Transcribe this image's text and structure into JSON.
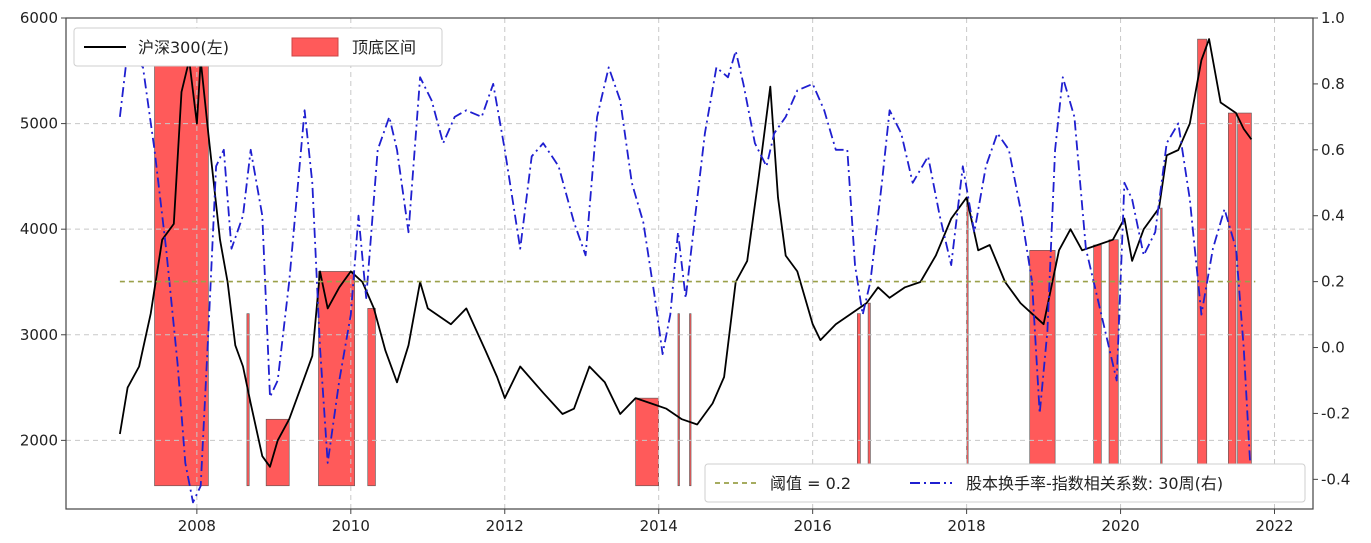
{
  "chart_data": {
    "type": "line",
    "x_range": [
      2006.3,
      2022.5
    ],
    "x_ticks": [
      "2008",
      "2010",
      "2012",
      "2014",
      "2016",
      "2018",
      "2020",
      "2022"
    ],
    "y_left": {
      "range": [
        1350,
        6000
      ],
      "ticks": [
        "2000",
        "3000",
        "4000",
        "5000",
        "6000"
      ]
    },
    "y_right": {
      "range": [
        -0.49,
        1.0
      ],
      "ticks": [
        "-0.4",
        "-0.2",
        "0.0",
        "0.2",
        "0.4",
        "0.6",
        "0.8",
        "1.0"
      ]
    },
    "grid": true,
    "legends": {
      "top_left": [
        "沪深300(左)",
        "顶底区间"
      ],
      "bottom_right": [
        "阈值 = 0.2",
        "股本换手率-指数相关系数: 30周(右)"
      ]
    },
    "series": [
      {
        "name": "沪深300(左)",
        "axis": "left",
        "color": "#000000",
        "style": "solid",
        "points": [
          [
            2007.0,
            2060
          ],
          [
            2007.1,
            2500
          ],
          [
            2007.25,
            2700
          ],
          [
            2007.4,
            3200
          ],
          [
            2007.55,
            3900
          ],
          [
            2007.7,
            4050
          ],
          [
            2007.8,
            5300
          ],
          [
            2007.9,
            5600
          ],
          [
            2008.0,
            5000
          ],
          [
            2008.05,
            5600
          ],
          [
            2008.15,
            4900
          ],
          [
            2008.3,
            3900
          ],
          [
            2008.4,
            3500
          ],
          [
            2008.5,
            2900
          ],
          [
            2008.6,
            2700
          ],
          [
            2008.7,
            2350
          ],
          [
            2008.85,
            1850
          ],
          [
            2008.95,
            1750
          ],
          [
            2009.05,
            2000
          ],
          [
            2009.2,
            2200
          ],
          [
            2009.35,
            2500
          ],
          [
            2009.5,
            2800
          ],
          [
            2009.6,
            3600
          ],
          [
            2009.7,
            3250
          ],
          [
            2009.85,
            3450
          ],
          [
            2010.0,
            3600
          ],
          [
            2010.15,
            3500
          ],
          [
            2010.3,
            3250
          ],
          [
            2010.45,
            2850
          ],
          [
            2010.6,
            2550
          ],
          [
            2010.75,
            2900
          ],
          [
            2010.9,
            3500
          ],
          [
            2011.0,
            3250
          ],
          [
            2011.3,
            3100
          ],
          [
            2011.5,
            3250
          ],
          [
            2011.75,
            2850
          ],
          [
            2011.9,
            2600
          ],
          [
            2012.0,
            2400
          ],
          [
            2012.2,
            2700
          ],
          [
            2012.5,
            2450
          ],
          [
            2012.75,
            2250
          ],
          [
            2012.9,
            2300
          ],
          [
            2013.1,
            2700
          ],
          [
            2013.3,
            2550
          ],
          [
            2013.5,
            2250
          ],
          [
            2013.7,
            2400
          ],
          [
            2013.9,
            2350
          ],
          [
            2014.1,
            2300
          ],
          [
            2014.3,
            2200
          ],
          [
            2014.5,
            2150
          ],
          [
            2014.7,
            2350
          ],
          [
            2014.85,
            2600
          ],
          [
            2015.0,
            3500
          ],
          [
            2015.15,
            3700
          ],
          [
            2015.3,
            4500
          ],
          [
            2015.45,
            5350
          ],
          [
            2015.55,
            4300
          ],
          [
            2015.65,
            3750
          ],
          [
            2015.8,
            3600
          ],
          [
            2016.0,
            3100
          ],
          [
            2016.1,
            2950
          ],
          [
            2016.3,
            3100
          ],
          [
            2016.5,
            3200
          ],
          [
            2016.7,
            3300
          ],
          [
            2016.85,
            3450
          ],
          [
            2017.0,
            3350
          ],
          [
            2017.2,
            3450
          ],
          [
            2017.4,
            3500
          ],
          [
            2017.6,
            3750
          ],
          [
            2017.8,
            4100
          ],
          [
            2018.0,
            4300
          ],
          [
            2018.15,
            3800
          ],
          [
            2018.3,
            3850
          ],
          [
            2018.5,
            3500
          ],
          [
            2018.7,
            3300
          ],
          [
            2018.85,
            3200
          ],
          [
            2019.0,
            3100
          ],
          [
            2019.2,
            3800
          ],
          [
            2019.35,
            4000
          ],
          [
            2019.5,
            3800
          ],
          [
            2019.7,
            3850
          ],
          [
            2019.9,
            3900
          ],
          [
            2020.05,
            4100
          ],
          [
            2020.15,
            3700
          ],
          [
            2020.3,
            4000
          ],
          [
            2020.5,
            4200
          ],
          [
            2020.6,
            4700
          ],
          [
            2020.75,
            4750
          ],
          [
            2020.9,
            5000
          ],
          [
            2021.05,
            5600
          ],
          [
            2021.15,
            5800
          ],
          [
            2021.3,
            5200
          ],
          [
            2021.5,
            5100
          ],
          [
            2021.6,
            4950
          ],
          [
            2021.7,
            4850
          ]
        ]
      },
      {
        "name": "股本换手率-指数相关系数: 30周(右)",
        "axis": "right",
        "color": "#1f1fd0",
        "style": "dashdot",
        "points": [
          [
            2007.0,
            0.7
          ],
          [
            2007.1,
            0.9
          ],
          [
            2007.3,
            0.85
          ],
          [
            2007.45,
            0.6
          ],
          [
            2007.6,
            0.3
          ],
          [
            2007.75,
            -0.05
          ],
          [
            2007.85,
            -0.35
          ],
          [
            2007.95,
            -0.47
          ],
          [
            2008.05,
            -0.42
          ],
          [
            2008.15,
            0.05
          ],
          [
            2008.25,
            0.55
          ],
          [
            2008.35,
            0.6
          ],
          [
            2008.45,
            0.3
          ],
          [
            2008.6,
            0.4
          ],
          [
            2008.7,
            0.6
          ],
          [
            2008.85,
            0.4
          ],
          [
            2008.95,
            -0.15
          ],
          [
            2009.05,
            -0.1
          ],
          [
            2009.2,
            0.2
          ],
          [
            2009.4,
            0.72
          ],
          [
            2009.5,
            0.5
          ],
          [
            2009.6,
            0.0
          ],
          [
            2009.7,
            -0.35
          ],
          [
            2009.85,
            -0.1
          ],
          [
            2010.0,
            0.1
          ],
          [
            2010.1,
            0.4
          ],
          [
            2010.2,
            0.15
          ],
          [
            2010.35,
            0.6
          ],
          [
            2010.5,
            0.7
          ],
          [
            2010.6,
            0.6
          ],
          [
            2010.75,
            0.35
          ],
          [
            2010.9,
            0.82
          ],
          [
            2011.05,
            0.75
          ],
          [
            2011.2,
            0.62
          ],
          [
            2011.35,
            0.7
          ],
          [
            2011.5,
            0.72
          ],
          [
            2011.7,
            0.7
          ],
          [
            2011.85,
            0.8
          ],
          [
            2012.0,
            0.6
          ],
          [
            2012.2,
            0.3
          ],
          [
            2012.35,
            0.58
          ],
          [
            2012.5,
            0.62
          ],
          [
            2012.7,
            0.55
          ],
          [
            2012.9,
            0.38
          ],
          [
            2013.05,
            0.28
          ],
          [
            2013.2,
            0.7
          ],
          [
            2013.35,
            0.85
          ],
          [
            2013.5,
            0.75
          ],
          [
            2013.65,
            0.5
          ],
          [
            2013.8,
            0.38
          ],
          [
            2013.95,
            0.15
          ],
          [
            2014.05,
            -0.02
          ],
          [
            2014.15,
            0.1
          ],
          [
            2014.25,
            0.35
          ],
          [
            2014.35,
            0.15
          ],
          [
            2014.45,
            0.35
          ],
          [
            2014.6,
            0.65
          ],
          [
            2014.75,
            0.85
          ],
          [
            2014.9,
            0.82
          ],
          [
            2015.0,
            0.9
          ],
          [
            2015.1,
            0.8
          ],
          [
            2015.25,
            0.62
          ],
          [
            2015.4,
            0.55
          ],
          [
            2015.5,
            0.65
          ],
          [
            2015.65,
            0.7
          ],
          [
            2015.8,
            0.78
          ],
          [
            2016.0,
            0.8
          ],
          [
            2016.15,
            0.72
          ],
          [
            2016.3,
            0.6
          ],
          [
            2016.45,
            0.6
          ],
          [
            2016.55,
            0.25
          ],
          [
            2016.65,
            0.1
          ],
          [
            2016.75,
            0.2
          ],
          [
            2016.9,
            0.5
          ],
          [
            2017.0,
            0.72
          ],
          [
            2017.15,
            0.65
          ],
          [
            2017.3,
            0.5
          ],
          [
            2017.5,
            0.58
          ],
          [
            2017.65,
            0.4
          ],
          [
            2017.8,
            0.25
          ],
          [
            2017.95,
            0.55
          ],
          [
            2018.1,
            0.35
          ],
          [
            2018.25,
            0.55
          ],
          [
            2018.4,
            0.65
          ],
          [
            2018.55,
            0.6
          ],
          [
            2018.7,
            0.42
          ],
          [
            2018.85,
            0.2
          ],
          [
            2018.95,
            -0.2
          ],
          [
            2019.05,
            0.05
          ],
          [
            2019.15,
            0.6
          ],
          [
            2019.25,
            0.82
          ],
          [
            2019.4,
            0.7
          ],
          [
            2019.55,
            0.3
          ],
          [
            2019.7,
            0.15
          ],
          [
            2019.85,
            0.0
          ],
          [
            2019.95,
            -0.1
          ],
          [
            2020.05,
            0.5
          ],
          [
            2020.15,
            0.45
          ],
          [
            2020.3,
            0.28
          ],
          [
            2020.45,
            0.35
          ],
          [
            2020.6,
            0.62
          ],
          [
            2020.75,
            0.68
          ],
          [
            2020.9,
            0.45
          ],
          [
            2021.05,
            0.1
          ],
          [
            2021.2,
            0.3
          ],
          [
            2021.35,
            0.42
          ],
          [
            2021.5,
            0.3
          ],
          [
            2021.6,
            0.0
          ],
          [
            2021.7,
            -0.42
          ]
        ]
      },
      {
        "name": "阈值 = 0.2",
        "axis": "right",
        "color": "#9aa04a",
        "style": "dashed",
        "points": [
          [
            2007.0,
            0.2
          ],
          [
            2021.75,
            0.2
          ]
        ]
      }
    ],
    "bands": {
      "name": "顶底区间",
      "color": "#ff5a5a",
      "intervals": [
        [
          2007.45,
          2008.15
        ],
        [
          2008.65,
          2008.68
        ],
        [
          2008.9,
          2009.2
        ],
        [
          2009.58,
          2010.05
        ],
        [
          2010.22,
          2010.32
        ],
        [
          2013.7,
          2014.0
        ],
        [
          2014.25,
          2014.27
        ],
        [
          2014.4,
          2014.42
        ],
        [
          2016.58,
          2016.62
        ],
        [
          2016.72,
          2016.75
        ],
        [
          2018.0,
          2018.02
        ],
        [
          2018.82,
          2019.15
        ],
        [
          2019.65,
          2019.75
        ],
        [
          2019.85,
          2019.97
        ],
        [
          2020.52,
          2020.54
        ],
        [
          2021.0,
          2021.12
        ],
        [
          2021.4,
          2021.5
        ],
        [
          2021.52,
          2021.7
        ]
      ]
    }
  }
}
